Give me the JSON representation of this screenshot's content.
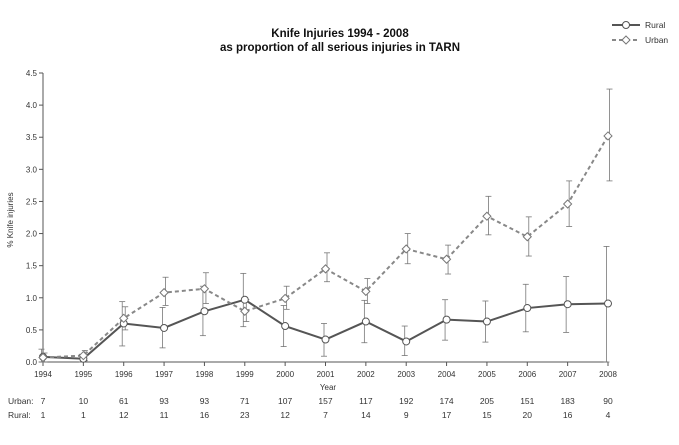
{
  "chart_data": {
    "type": "line",
    "title": "Knife Injuries 1994 - 2008",
    "subtitle": "as proportion of all serious injuries in TARN",
    "xlabel": "Year",
    "ylabel": "% Knife injuries",
    "ylim": [
      0,
      4.5
    ],
    "yticks": [
      "0.0",
      "0.5",
      "1.0",
      "1.5",
      "2.0",
      "2.5",
      "3.0",
      "3.5",
      "4.0",
      "4.5"
    ],
    "x": [
      "1994",
      "1995",
      "1996",
      "1997",
      "1998",
      "1999",
      "2000",
      "2001",
      "2002",
      "2003",
      "2004",
      "2005",
      "2006",
      "2007",
      "2008"
    ],
    "grid": false,
    "legend_position": "top-right",
    "series": [
      {
        "name": "Rural",
        "style": "solid",
        "color": "#555555",
        "marker": "circle",
        "values": [
          0.08,
          0.05,
          0.6,
          0.53,
          0.79,
          0.97,
          0.56,
          0.35,
          0.63,
          0.32,
          0.66,
          0.63,
          0.84,
          0.9,
          0.91
        ],
        "error_low": [
          0.0,
          0.0,
          0.25,
          0.22,
          0.41,
          0.55,
          0.24,
          0.09,
          0.3,
          0.1,
          0.34,
          0.31,
          0.47,
          0.46,
          0.0
        ],
        "error_high": [
          0.2,
          0.12,
          0.94,
          0.85,
          1.18,
          1.38,
          0.88,
          0.6,
          0.96,
          0.56,
          0.97,
          0.95,
          1.21,
          1.33,
          1.8
        ]
      },
      {
        "name": "Urban",
        "style": "dashed",
        "color": "#888888",
        "marker": "diamond",
        "values": [
          0.07,
          0.1,
          0.68,
          1.08,
          1.14,
          0.79,
          0.99,
          1.45,
          1.1,
          1.76,
          1.6,
          2.27,
          1.95,
          2.46,
          3.52
        ],
        "error_low": [
          0.0,
          0.02,
          0.5,
          0.88,
          0.91,
          0.63,
          0.82,
          1.25,
          0.91,
          1.53,
          1.37,
          1.98,
          1.65,
          2.11,
          2.82
        ],
        "error_high": [
          0.14,
          0.18,
          0.86,
          1.32,
          1.39,
          0.97,
          1.18,
          1.7,
          1.3,
          2.0,
          1.82,
          2.58,
          2.26,
          2.82,
          4.25
        ]
      }
    ],
    "counts": {
      "urban_label": "Urban:",
      "rural_label": "Rural:",
      "urban": [
        "7",
        "10",
        "61",
        "93",
        "93",
        "71",
        "107",
        "157",
        "117",
        "192",
        "174",
        "205",
        "151",
        "183",
        "90"
      ],
      "rural": [
        "1",
        "1",
        "12",
        "11",
        "16",
        "23",
        "12",
        "7",
        "14",
        "9",
        "17",
        "15",
        "20",
        "16",
        "4"
      ]
    }
  }
}
